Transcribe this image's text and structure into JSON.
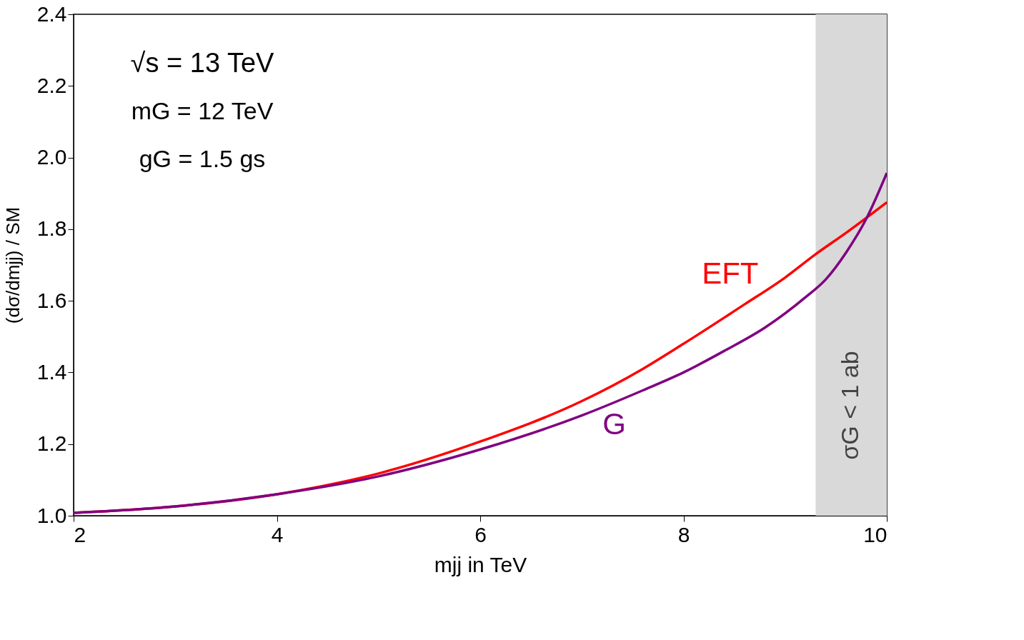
{
  "chart_data": {
    "type": "line",
    "xlabel": "mjj in TeV",
    "ylabel": "(dσ/dmjj) / SM",
    "xlim": [
      2,
      10
    ],
    "xticks": [
      2,
      4,
      6,
      8,
      10
    ],
    "ylim": [
      1.0,
      2.4
    ],
    "yticks": [
      {
        "value": 1,
        "label": "1.0"
      },
      1.2,
      1.4,
      1.6,
      1.8,
      {
        "value": 2,
        "label": "2.0"
      },
      2.2,
      2.4
    ],
    "grid": false,
    "line_style": "solid",
    "marker": "none",
    "series": [
      {
        "name": "EFT",
        "color": "#ff0000",
        "x": [
          2,
          3,
          4,
          5,
          6,
          7,
          7.6,
          8,
          8.6,
          9,
          9.3,
          9.6,
          10
        ],
        "values": [
          1.008,
          1.026,
          1.06,
          1.118,
          1.207,
          1.32,
          1.41,
          1.48,
          1.59,
          1.665,
          1.73,
          1.79,
          1.875
        ]
      },
      {
        "name": "G",
        "color": "#800080",
        "x": [
          2,
          3,
          4,
          5,
          6,
          7,
          7.6,
          8,
          8.4,
          8.8,
          9.2,
          9.4,
          9.6,
          9.8,
          10
        ],
        "values": [
          1.008,
          1.026,
          1.06,
          1.11,
          1.185,
          1.28,
          1.35,
          1.4,
          1.46,
          1.525,
          1.61,
          1.66,
          1.735,
          1.83,
          1.957
        ]
      }
    ],
    "bands": [
      {
        "axis": "x",
        "from": 9.3,
        "to": 10,
        "label": "σG < 1 ab",
        "color": "#d9d9d9"
      }
    ],
    "annotations": [
      "√s = 13 TeV",
      "mG = 12 TeV",
      "gG = 1.5 gs"
    ]
  }
}
